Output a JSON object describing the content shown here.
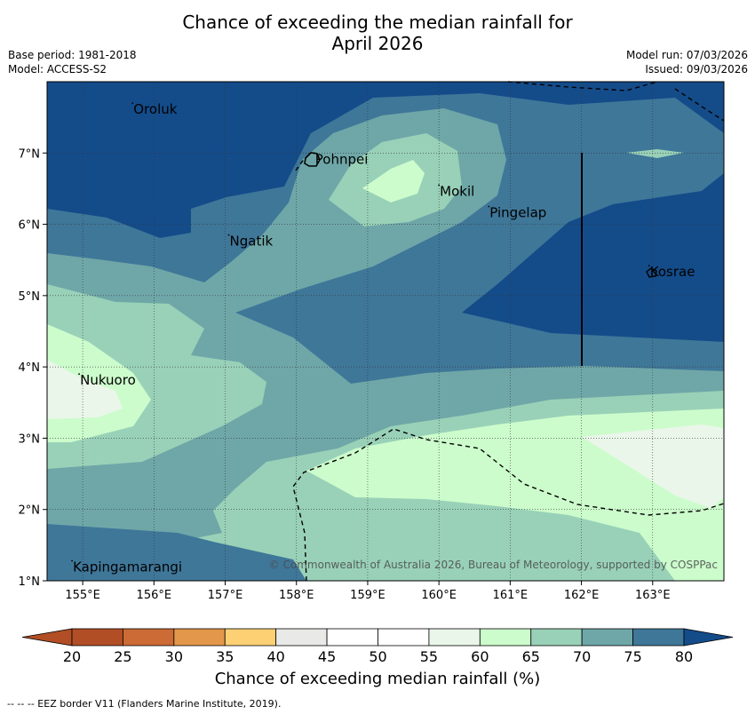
{
  "title_line1": "Chance of exceeding the median rainfall for",
  "title_line2": "April 2026",
  "meta_left": [
    "Base period: 1981-2018",
    "Model: ACCESS-S2"
  ],
  "meta_right": [
    "Model run: 07/03/2026",
    "Issued: 09/03/2026"
  ],
  "places": [
    {
      "name": "Oroluk",
      "lon": 155.7,
      "lat": 7.6
    },
    {
      "name": "Pohnpei",
      "lon": 158.25,
      "lat": 6.9
    },
    {
      "name": "Mokil",
      "lon": 160.0,
      "lat": 6.45
    },
    {
      "name": "Pingelap",
      "lon": 160.7,
      "lat": 6.15
    },
    {
      "name": "Ngatik",
      "lon": 157.05,
      "lat": 5.75
    },
    {
      "name": "Kosrae",
      "lon": 162.95,
      "lat": 5.32
    },
    {
      "name": "Nukuoro",
      "lon": 154.95,
      "lat": 3.8
    },
    {
      "name": "Kapingamarangi",
      "lon": 154.85,
      "lat": 1.18
    }
  ],
  "x_ticks": [
    "155°E",
    "156°E",
    "157°E",
    "158°E",
    "159°E",
    "160°E",
    "161°E",
    "162°E",
    "163°E"
  ],
  "y_ticks": [
    "1°N",
    "2°N",
    "3°N",
    "4°N",
    "5°N",
    "6°N",
    "7°N"
  ],
  "copyright": "© Commonwealth of Australia 2026, Bureau of Meteorology, supported by COSPPac",
  "colorbar": {
    "labels": [
      "20",
      "25",
      "30",
      "35",
      "40",
      "45",
      "50",
      "55",
      "60",
      "65",
      "70",
      "75",
      "80"
    ],
    "colors": [
      "#b24e25",
      "#cc6b35",
      "#e3974a",
      "#fdd074",
      "#e9e9e7",
      "#ffffff",
      "#ffffff",
      "#eaf6ea",
      "#ccfccc",
      "#99d1b8",
      "#6fa7a8",
      "#3f7799",
      "#144c8a"
    ],
    "title": "Chance of exceeding median rainfall (%)"
  },
  "footer": "--  --  -- EEZ border V11 (Flanders Marine Institute, 2019).",
  "chart_data": {
    "type": "filled-contour map",
    "title": "Chance of exceeding the median rainfall for April 2026",
    "lon_range": [
      154.5,
      164.0
    ],
    "lat_range": [
      1.0,
      8.0
    ],
    "variable": "Chance of exceeding median rainfall (%)",
    "levels": [
      20,
      25,
      30,
      35,
      40,
      45,
      50,
      55,
      60,
      65,
      70,
      75,
      80
    ],
    "summary": "Most of the domain is 70-80%+; a 55-65% band crosses the south-east and far west; 60-70% patch north-east of Pohnpei."
  }
}
